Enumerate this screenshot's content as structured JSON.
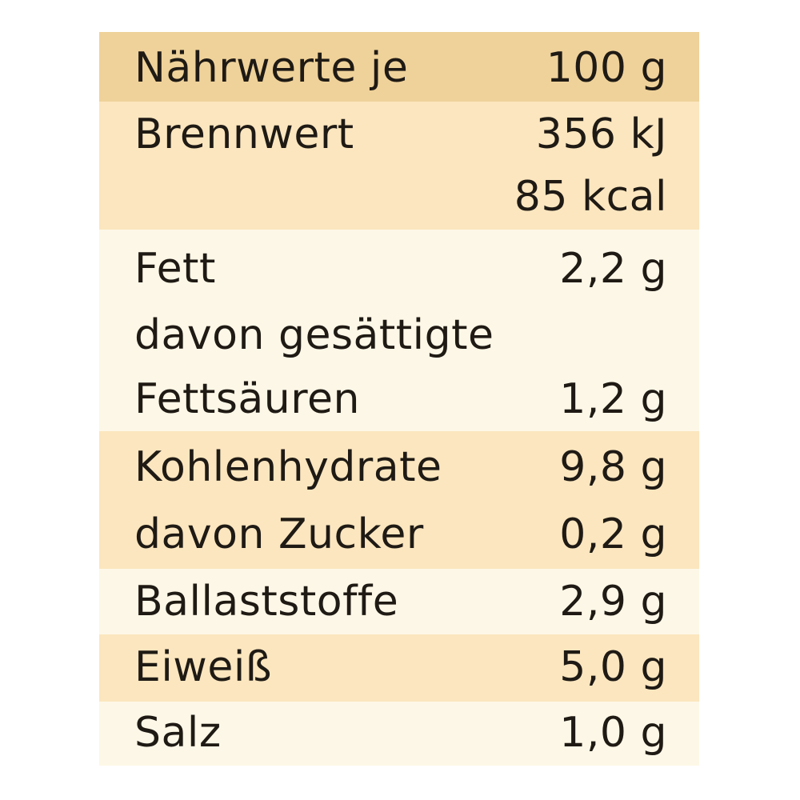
{
  "table": {
    "header": {
      "label": "Nährwerte je",
      "value": "100 g"
    },
    "energy": {
      "label": "Brennwert",
      "value_kj": "356 kJ",
      "value_kcal": "85 kcal"
    },
    "fat": {
      "label": "Fett",
      "value": "2,2 g"
    },
    "saturated": {
      "label_line1": "davon gesättigte",
      "label_line2": "Fettsäuren",
      "value": "1,2 g"
    },
    "carbs": {
      "label": "Kohlenhydrate",
      "value": "9,8 g"
    },
    "sugar": {
      "label": "davon Zucker",
      "value": "0,2 g"
    },
    "fiber": {
      "label": "Ballaststoffe",
      "value": "2,9 g"
    },
    "protein": {
      "label": "Eiweiß",
      "value": "5,0 g"
    },
    "salt": {
      "label": "Salz",
      "value": "1,0 g"
    }
  },
  "colors": {
    "header_band": "#efd29a",
    "light_band": "#fbe6bf",
    "pale_band": "#fdf7e7",
    "text": "#1f1a14"
  }
}
